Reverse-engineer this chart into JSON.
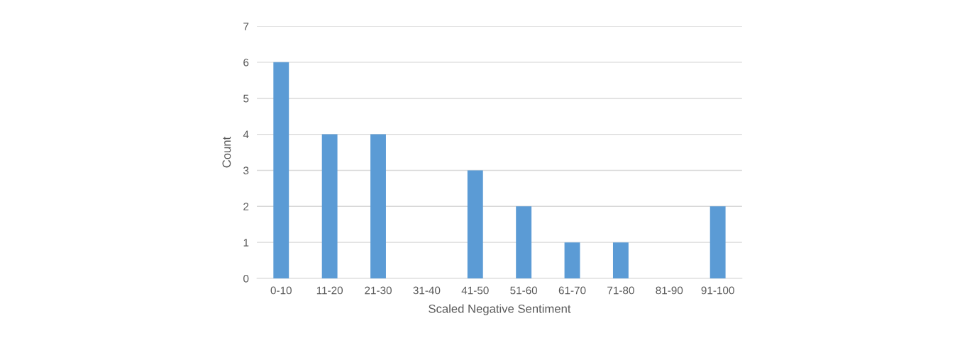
{
  "chart_data": {
    "type": "bar",
    "xlabel": "Scaled Negative Sentiment",
    "ylabel": "Count",
    "categories": [
      "0-10",
      "11-20",
      "21-30",
      "31-40",
      "41-50",
      "51-60",
      "61-70",
      "71-80",
      "81-90",
      "91-100"
    ],
    "values": [
      6,
      4,
      4,
      0,
      3,
      2,
      1,
      1,
      0,
      2
    ],
    "color": "#5b9bd5",
    "ylim": [
      0,
      7
    ],
    "yticks": [
      0,
      1,
      2,
      3,
      4,
      5,
      6,
      7
    ],
    "grid": "y",
    "legend": false
  }
}
